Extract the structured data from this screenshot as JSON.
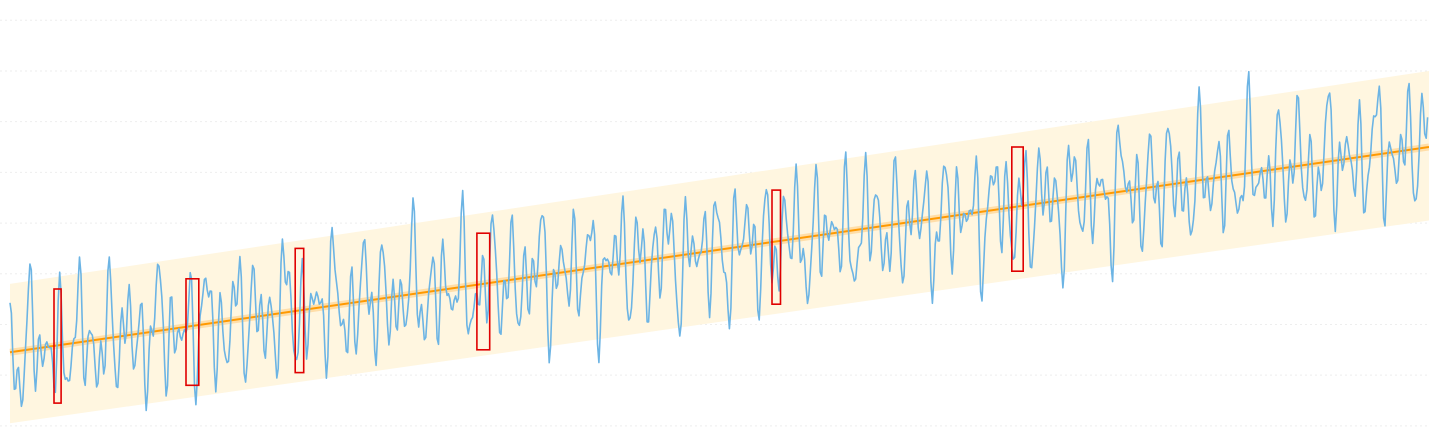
{
  "chart_data": {
    "type": "line",
    "title": "",
    "xlabel": "",
    "ylabel": "",
    "xlim": [
      0,
      1000
    ],
    "ylim": [
      -5.2,
      3.4
    ],
    "grid": true,
    "legend": "none",
    "colors": {
      "signal": "#6cb4e4",
      "trend": "#ff9900",
      "band": "#fff6e0",
      "anomaly": "#e00000",
      "grid": "#eeeeee"
    },
    "series": [
      {
        "kind": "signal",
        "x_start": 0,
        "x_step": 1,
        "count": 1000,
        "baseline": {
          "slope": 0.00405,
          "intercept": -3.55
        },
        "components": [
          {
            "amplitude": 0.62,
            "period": 11.3,
            "phase": 0.4
          },
          {
            "amplitude": 0.52,
            "period": 7.1,
            "phase": 1.9
          },
          {
            "amplitude": 0.44,
            "period": 17.9,
            "phase": 2.7
          },
          {
            "amplitude": 0.3,
            "period": 4.9,
            "phase": 0.9
          },
          {
            "amplitude": 0.22,
            "period": 29.5,
            "phase": 4.1
          }
        ]
      },
      {
        "kind": "trend",
        "points": [
          [
            0,
            -3.55
          ],
          [
            1000,
            0.5
          ]
        ]
      },
      {
        "kind": "band",
        "upper": [
          [
            0,
            -2.2
          ],
          [
            1000,
            2.0
          ]
        ],
        "lower": [
          [
            0,
            -4.95
          ],
          [
            1000,
            -0.95
          ]
        ]
      }
    ],
    "anomalies": [
      {
        "x0": 31,
        "x1": 36,
        "y0": -4.55,
        "y1": -2.3
      },
      {
        "x0": 124,
        "x1": 133,
        "y0": -4.2,
        "y1": -2.1
      },
      {
        "x0": 201,
        "x1": 207,
        "y0": -3.95,
        "y1": -1.5
      },
      {
        "x0": 329,
        "x1": 338,
        "y0": -3.5,
        "y1": -1.2
      },
      {
        "x0": 537,
        "x1": 543,
        "y0": -2.6,
        "y1": -0.35
      },
      {
        "x0": 706,
        "x1": 714,
        "y0": -1.95,
        "y1": 0.5
      }
    ]
  }
}
